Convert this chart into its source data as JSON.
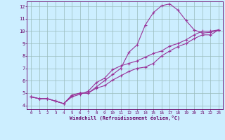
{
  "bg_color": "#cceeff",
  "line_color": "#993399",
  "grid_color": "#99bbbb",
  "xlabel": "Windchill (Refroidissement éolien,°C)",
  "xlabel_color": "#660066",
  "tick_color": "#660066",
  "xlim": [
    -0.5,
    23.5
  ],
  "ylim": [
    3.7,
    12.4
  ],
  "xticks": [
    0,
    1,
    2,
    3,
    4,
    5,
    6,
    7,
    8,
    9,
    10,
    11,
    12,
    13,
    14,
    15,
    16,
    17,
    18,
    19,
    20,
    21,
    22,
    23
  ],
  "yticks": [
    4,
    5,
    6,
    7,
    8,
    9,
    10,
    11,
    12
  ],
  "line1_x": [
    0,
    1,
    2,
    3,
    4,
    5,
    6,
    7,
    8,
    9,
    10,
    11,
    12,
    13,
    14,
    15,
    16,
    17,
    18,
    19,
    20,
    21,
    22,
    23
  ],
  "line1_y": [
    4.7,
    4.55,
    4.55,
    4.35,
    4.15,
    4.85,
    5.0,
    5.0,
    5.5,
    6.0,
    6.5,
    7.0,
    8.3,
    8.9,
    10.5,
    11.5,
    12.05,
    12.2,
    11.7,
    10.85,
    10.1,
    9.85,
    9.9,
    10.1
  ],
  "line2_x": [
    0,
    1,
    2,
    3,
    4,
    5,
    6,
    7,
    8,
    9,
    10,
    11,
    12,
    13,
    14,
    15,
    16,
    17,
    18,
    19,
    20,
    21,
    22,
    23
  ],
  "line2_y": [
    4.7,
    4.55,
    4.55,
    4.35,
    4.15,
    4.7,
    4.9,
    5.15,
    5.85,
    6.2,
    6.9,
    7.2,
    7.4,
    7.6,
    7.9,
    8.2,
    8.4,
    8.8,
    9.0,
    9.3,
    9.7,
    10.0,
    10.0,
    10.1
  ],
  "line3_x": [
    0,
    1,
    2,
    3,
    4,
    5,
    6,
    7,
    8,
    9,
    10,
    11,
    12,
    13,
    14,
    15,
    16,
    17,
    18,
    19,
    20,
    21,
    22,
    23
  ],
  "line3_y": [
    4.7,
    4.55,
    4.55,
    4.35,
    4.15,
    4.8,
    5.0,
    5.0,
    5.4,
    5.6,
    6.05,
    6.4,
    6.75,
    7.0,
    7.1,
    7.4,
    8.0,
    8.4,
    8.75,
    9.0,
    9.4,
    9.7,
    9.7,
    10.1
  ],
  "marker": "+",
  "markersize": 3.0,
  "linewidth": 0.8
}
